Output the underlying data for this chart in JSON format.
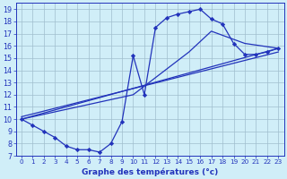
{
  "bg_color": "#d0eef8",
  "line_color": "#2233bb",
  "grid_color": "#a0bece",
  "xlabel": "Graphe des températures (°c)",
  "xlabel_color": "#2233bb",
  "xlim": [
    -0.5,
    23.5
  ],
  "ylim": [
    7,
    19.5
  ],
  "yticks": [
    7,
    8,
    9,
    10,
    11,
    12,
    13,
    14,
    15,
    16,
    17,
    18,
    19
  ],
  "xticks": [
    0,
    1,
    2,
    3,
    4,
    5,
    6,
    7,
    8,
    9,
    10,
    11,
    12,
    13,
    14,
    15,
    16,
    17,
    18,
    19,
    20,
    21,
    22,
    23
  ],
  "curve1_x": [
    0,
    1,
    2,
    3,
    4,
    5,
    6,
    7,
    8,
    9,
    10,
    11,
    12,
    13,
    14,
    15,
    16,
    17,
    18,
    19,
    20,
    21,
    22,
    23
  ],
  "curve1_y": [
    10.0,
    9.5,
    9.0,
    8.5,
    7.8,
    7.5,
    7.5,
    7.3,
    8.0,
    9.8,
    15.2,
    12.0,
    17.5,
    18.3,
    18.6,
    18.8,
    19.0,
    18.2,
    17.8,
    16.2,
    15.3,
    15.3,
    15.5,
    15.8
  ],
  "line1_x": [
    0,
    23
  ],
  "line1_y": [
    10.0,
    15.8
  ],
  "line2_x": [
    0,
    23
  ],
  "line2_y": [
    10.2,
    15.5
  ],
  "line3_x": [
    0,
    10,
    15,
    17,
    20,
    23
  ],
  "line3_y": [
    10.0,
    12.0,
    15.5,
    17.2,
    16.2,
    15.8
  ]
}
